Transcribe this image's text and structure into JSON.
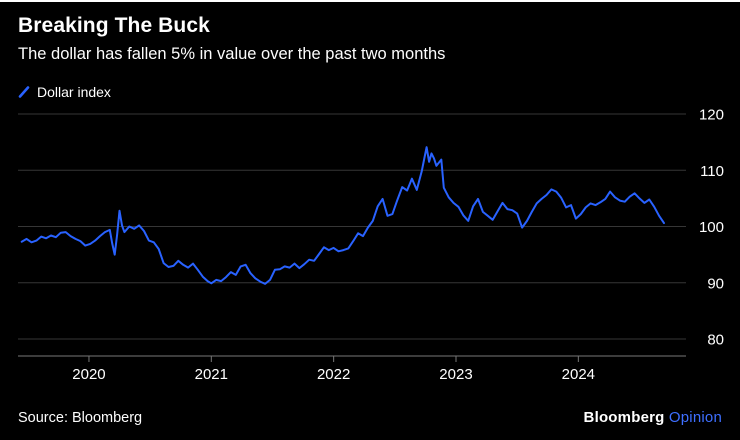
{
  "header": {
    "title": "Breaking The Buck",
    "subtitle": "The dollar has fallen 5% in value over the past two months"
  },
  "legend": {
    "label": "Dollar index",
    "marker": "slash-line-icon"
  },
  "footer": {
    "source": "Source: Bloomberg",
    "brand": "Bloomberg",
    "brand_suffix": "Opinion"
  },
  "colors": {
    "background": "#000000",
    "line": "#2962ff",
    "grid": "#363636",
    "axis": "#777777",
    "tick_text": "#ffffff",
    "opinion_blue": "#3e6fff"
  },
  "chart_data": {
    "type": "line",
    "title": "Breaking The Buck",
    "subtitle": "The dollar has fallen 5% in value over the past two months",
    "xlabel": "",
    "ylabel": "Dollar index",
    "grid": "horizontal",
    "legend_position": "top-left",
    "x_range": [
      2019.42,
      2024.88
    ],
    "ylim": [
      77,
      121
    ],
    "y_ticks": [
      80,
      90,
      100,
      110,
      120
    ],
    "x_ticks": [
      2020,
      2021,
      2022,
      2023,
      2024
    ],
    "x_tick_labels": [
      "2020",
      "2021",
      "2022",
      "2023",
      "2024"
    ],
    "series": [
      {
        "name": "Dollar index",
        "color": "#2962ff",
        "points": [
          [
            2019.45,
            97.3
          ],
          [
            2019.49,
            97.8
          ],
          [
            2019.53,
            97.2
          ],
          [
            2019.57,
            97.5
          ],
          [
            2019.61,
            98.2
          ],
          [
            2019.65,
            97.9
          ],
          [
            2019.69,
            98.4
          ],
          [
            2019.73,
            98.1
          ],
          [
            2019.77,
            98.9
          ],
          [
            2019.81,
            99.0
          ],
          [
            2019.85,
            98.3
          ],
          [
            2019.89,
            97.8
          ],
          [
            2019.93,
            97.4
          ],
          [
            2019.97,
            96.6
          ],
          [
            2020.01,
            96.9
          ],
          [
            2020.05,
            97.5
          ],
          [
            2020.09,
            98.3
          ],
          [
            2020.13,
            99.0
          ],
          [
            2020.17,
            99.4
          ],
          [
            2020.19,
            97.0
          ],
          [
            2020.21,
            95.0
          ],
          [
            2020.23,
            98.5
          ],
          [
            2020.25,
            102.8
          ],
          [
            2020.27,
            100.2
          ],
          [
            2020.29,
            99.0
          ],
          [
            2020.33,
            100.0
          ],
          [
            2020.37,
            99.6
          ],
          [
            2020.41,
            100.2
          ],
          [
            2020.45,
            99.2
          ],
          [
            2020.49,
            97.5
          ],
          [
            2020.53,
            97.2
          ],
          [
            2020.57,
            96.0
          ],
          [
            2020.61,
            93.5
          ],
          [
            2020.65,
            92.8
          ],
          [
            2020.69,
            93.0
          ],
          [
            2020.73,
            93.9
          ],
          [
            2020.77,
            93.2
          ],
          [
            2020.81,
            92.7
          ],
          [
            2020.85,
            93.4
          ],
          [
            2020.89,
            92.3
          ],
          [
            2020.93,
            91.1
          ],
          [
            2020.97,
            90.3
          ],
          [
            2021.0,
            89.9
          ],
          [
            2021.04,
            90.5
          ],
          [
            2021.08,
            90.3
          ],
          [
            2021.12,
            91.0
          ],
          [
            2021.16,
            91.9
          ],
          [
            2021.2,
            91.4
          ],
          [
            2021.24,
            92.9
          ],
          [
            2021.28,
            93.2
          ],
          [
            2021.32,
            91.7
          ],
          [
            2021.36,
            90.8
          ],
          [
            2021.4,
            90.2
          ],
          [
            2021.44,
            89.8
          ],
          [
            2021.48,
            90.5
          ],
          [
            2021.52,
            92.3
          ],
          [
            2021.56,
            92.4
          ],
          [
            2021.6,
            92.9
          ],
          [
            2021.64,
            92.7
          ],
          [
            2021.68,
            93.4
          ],
          [
            2021.72,
            92.6
          ],
          [
            2021.76,
            93.3
          ],
          [
            2021.8,
            94.1
          ],
          [
            2021.84,
            93.9
          ],
          [
            2021.88,
            95.1
          ],
          [
            2021.92,
            96.3
          ],
          [
            2021.96,
            95.8
          ],
          [
            2022.0,
            96.2
          ],
          [
            2022.04,
            95.6
          ],
          [
            2022.08,
            95.8
          ],
          [
            2022.12,
            96.1
          ],
          [
            2022.16,
            97.4
          ],
          [
            2022.2,
            98.8
          ],
          [
            2022.24,
            98.3
          ],
          [
            2022.28,
            99.8
          ],
          [
            2022.32,
            101.0
          ],
          [
            2022.36,
            103.6
          ],
          [
            2022.4,
            104.9
          ],
          [
            2022.44,
            101.9
          ],
          [
            2022.48,
            102.2
          ],
          [
            2022.52,
            104.7
          ],
          [
            2022.56,
            107.0
          ],
          [
            2022.6,
            106.4
          ],
          [
            2022.64,
            108.5
          ],
          [
            2022.68,
            106.5
          ],
          [
            2022.72,
            109.8
          ],
          [
            2022.74,
            112.0
          ],
          [
            2022.76,
            114.1
          ],
          [
            2022.78,
            111.5
          ],
          [
            2022.8,
            113.0
          ],
          [
            2022.82,
            112.1
          ],
          [
            2022.84,
            110.8
          ],
          [
            2022.88,
            111.9
          ],
          [
            2022.9,
            106.9
          ],
          [
            2022.94,
            105.2
          ],
          [
            2022.98,
            104.2
          ],
          [
            2023.02,
            103.5
          ],
          [
            2023.06,
            102.0
          ],
          [
            2023.1,
            101.0
          ],
          [
            2023.14,
            103.6
          ],
          [
            2023.18,
            104.9
          ],
          [
            2023.22,
            102.6
          ],
          [
            2023.26,
            101.9
          ],
          [
            2023.3,
            101.2
          ],
          [
            2023.34,
            102.7
          ],
          [
            2023.38,
            104.2
          ],
          [
            2023.42,
            103.1
          ],
          [
            2023.46,
            102.9
          ],
          [
            2023.5,
            102.3
          ],
          [
            2023.54,
            99.8
          ],
          [
            2023.58,
            101.0
          ],
          [
            2023.62,
            102.6
          ],
          [
            2023.66,
            104.1
          ],
          [
            2023.7,
            104.9
          ],
          [
            2023.74,
            105.6
          ],
          [
            2023.78,
            106.6
          ],
          [
            2023.82,
            106.2
          ],
          [
            2023.86,
            105.1
          ],
          [
            2023.9,
            103.4
          ],
          [
            2023.94,
            103.8
          ],
          [
            2023.98,
            101.4
          ],
          [
            2024.02,
            102.2
          ],
          [
            2024.06,
            103.4
          ],
          [
            2024.1,
            104.1
          ],
          [
            2024.14,
            103.8
          ],
          [
            2024.18,
            104.3
          ],
          [
            2024.22,
            104.9
          ],
          [
            2024.26,
            106.2
          ],
          [
            2024.3,
            105.2
          ],
          [
            2024.34,
            104.6
          ],
          [
            2024.38,
            104.4
          ],
          [
            2024.42,
            105.3
          ],
          [
            2024.46,
            105.9
          ],
          [
            2024.5,
            105.0
          ],
          [
            2024.54,
            104.2
          ],
          [
            2024.58,
            104.8
          ],
          [
            2024.62,
            103.5
          ],
          [
            2024.66,
            101.9
          ],
          [
            2024.7,
            100.6
          ]
        ]
      }
    ]
  }
}
